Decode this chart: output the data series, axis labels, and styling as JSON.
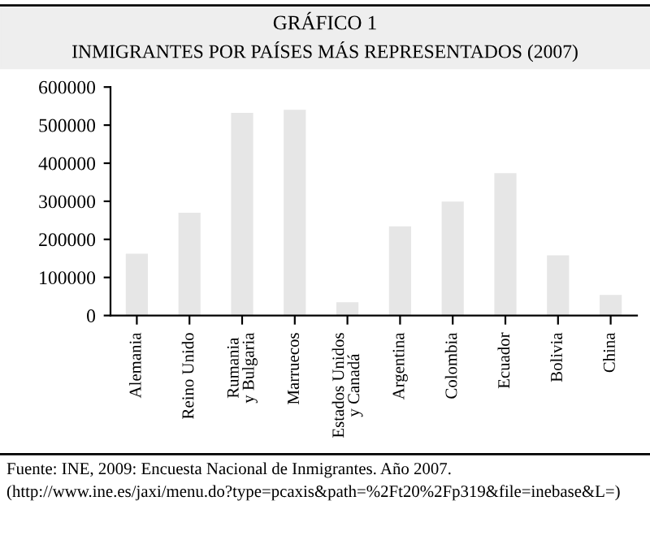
{
  "chart_data": {
    "type": "bar",
    "title": "GRÁFICO 1",
    "subtitle": "INMIGRANTES POR PAÍSES MÁS REPRESENTADOS (2007)",
    "categories": [
      "Alemania",
      "Reino Unido",
      "Rumania\ny Bulgaria",
      "Marruecos",
      "Estados Unidos\ny Canadá",
      "Argentina",
      "Colombia",
      "Ecuador",
      "Bolivia",
      "China"
    ],
    "values": [
      162000,
      270000,
      532000,
      540000,
      35000,
      234000,
      299000,
      374000,
      158000,
      54000
    ],
    "color": "#e6e6e6",
    "ylim": [
      0,
      600000
    ],
    "yticks": [
      0,
      100000,
      200000,
      300000,
      400000,
      500000,
      600000
    ],
    "grid": false,
    "annotations": [
      "Fuente: INE, 2009: Encuesta Nacional de Inmigrantes. Año 2007. (http://www.ine.es/jaxi/menu.do?type=pcaxis&path=%2Ft20%2Fp319&file=inebase&L=)"
    ]
  }
}
